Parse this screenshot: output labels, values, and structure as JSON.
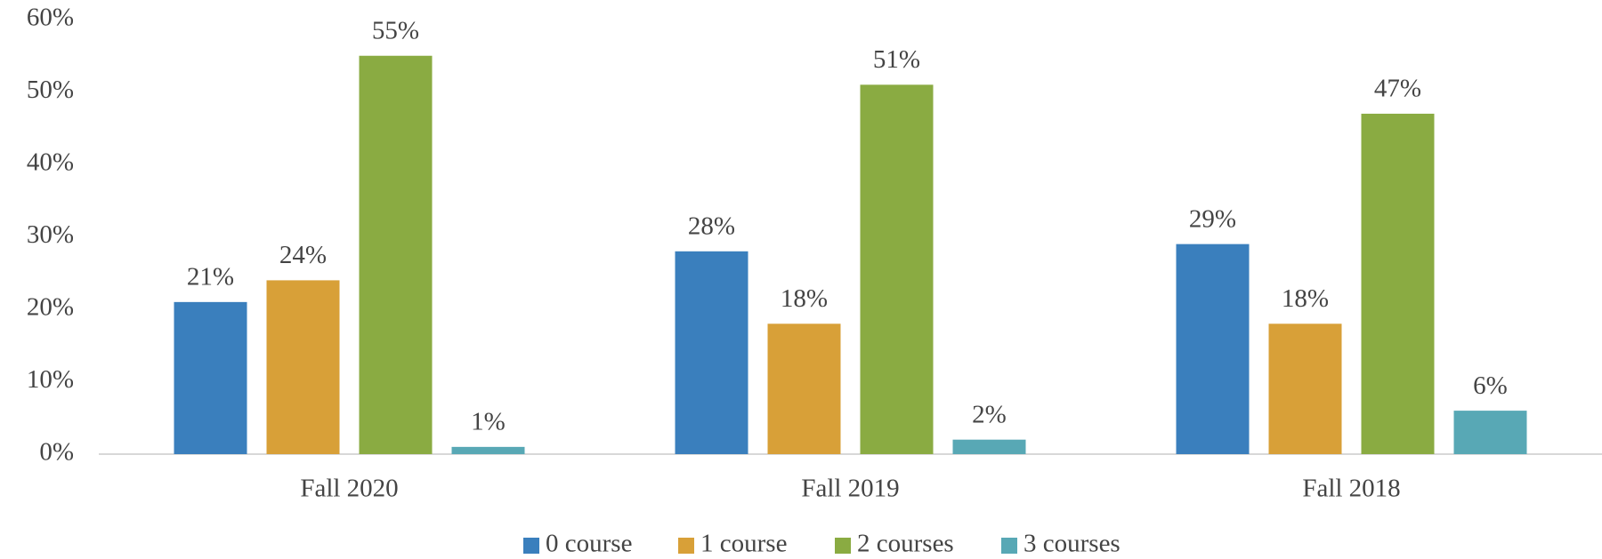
{
  "chart_data": {
    "type": "bar",
    "categories": [
      "Fall 2020",
      "Fall 2019",
      "Fall 2018"
    ],
    "series": [
      {
        "name": "0 course",
        "color": "#3a7fbd",
        "values": [
          21,
          28,
          29
        ],
        "value_labels": [
          "21%",
          "28%",
          "29%"
        ]
      },
      {
        "name": "1 course",
        "color": "#d8a038",
        "values": [
          24,
          18,
          18
        ],
        "value_labels": [
          "24%",
          "18%",
          "18%"
        ]
      },
      {
        "name": "2 courses",
        "color": "#8aab42",
        "values": [
          55,
          51,
          47
        ],
        "value_labels": [
          "55%",
          "51%",
          "47%"
        ]
      },
      {
        "name": "3 courses",
        "color": "#58a8b5",
        "values": [
          1,
          2,
          6
        ],
        "value_labels": [
          "1%",
          "2%",
          "6%"
        ]
      }
    ],
    "ylim": [
      0,
      60
    ],
    "yticks": [
      {
        "value": 0,
        "label": "0%"
      },
      {
        "value": 10,
        "label": "10%"
      },
      {
        "value": 20,
        "label": "20%"
      },
      {
        "value": 30,
        "label": "30%"
      },
      {
        "value": 40,
        "label": "40%"
      },
      {
        "value": 50,
        "label": "50%"
      },
      {
        "value": 60,
        "label": "60%"
      }
    ],
    "legend": "bottom",
    "grid": false
  }
}
